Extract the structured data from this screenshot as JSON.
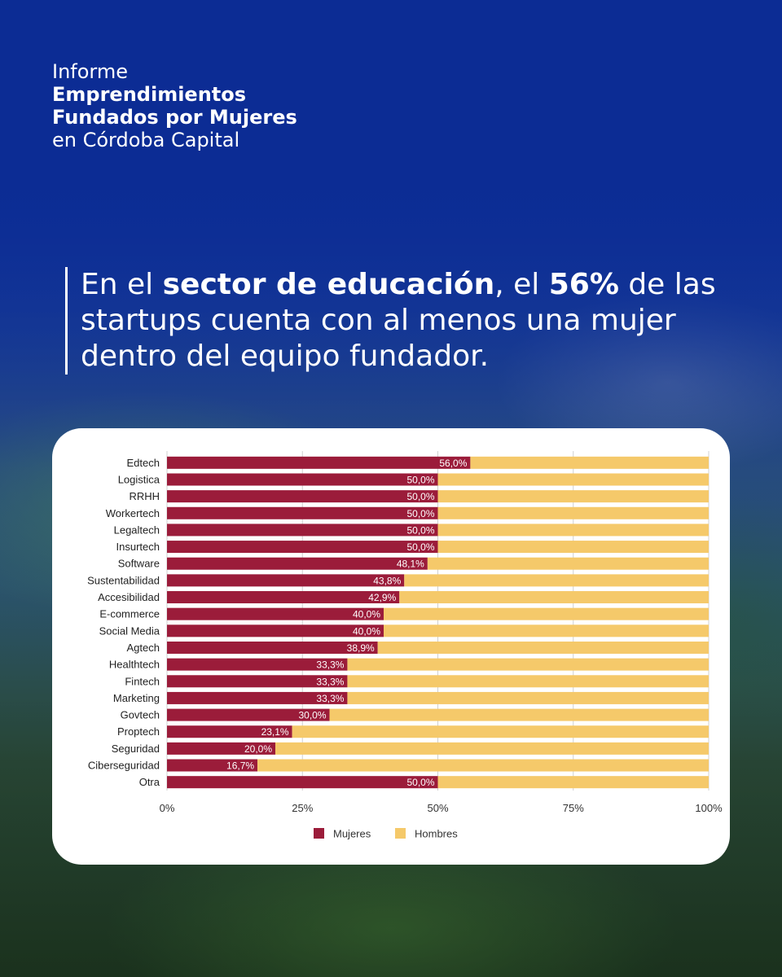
{
  "report": {
    "line1": "Informe",
    "line2": "Emprendimientos",
    "line3": "Fundados por Mujeres",
    "line4": "en Córdoba Capital"
  },
  "headline": {
    "p1": "En el ",
    "b1": "sector de educación",
    "p2": ", el ",
    "b2": "56%",
    "p3": " de las startups cuenta con al menos una mujer dentro del equipo fundador."
  },
  "colors": {
    "mujeres": "#9b1c3a",
    "hombres": "#f5c96a",
    "grid": "#d0d0d0"
  },
  "chart_data": {
    "type": "bar",
    "orientation": "horizontal",
    "stacked": true,
    "percent_stacked": true,
    "categories": [
      "Edtech",
      "Logistica",
      "RRHH",
      "Workertech",
      "Legaltech",
      "Insurtech",
      "Software",
      "Sustentabilidad",
      "Accesibilidad",
      "E-commerce",
      "Social Media",
      "Agtech",
      "Healthtech",
      "Fintech",
      "Marketing",
      "Govtech",
      "Proptech",
      "Seguridad",
      "Ciberseguridad",
      "Otra"
    ],
    "series": [
      {
        "name": "Mujeres",
        "values": [
          56.0,
          50.0,
          50.0,
          50.0,
          50.0,
          50.0,
          48.1,
          43.8,
          42.9,
          40.0,
          40.0,
          38.9,
          33.3,
          33.3,
          33.3,
          30.0,
          23.1,
          20.0,
          16.7,
          50.0
        ]
      },
      {
        "name": "Hombres",
        "values": [
          44.0,
          50.0,
          50.0,
          50.0,
          50.0,
          50.0,
          51.9,
          56.2,
          57.1,
          60.0,
          60.0,
          61.1,
          66.7,
          66.7,
          66.7,
          70.0,
          76.9,
          80.0,
          83.3,
          50.0
        ]
      }
    ],
    "data_labels": [
      "56,0%",
      "50,0%",
      "50,0%",
      "50,0%",
      "50,0%",
      "50,0%",
      "48,1%",
      "43,8%",
      "42,9%",
      "40,0%",
      "40,0%",
      "38,9%",
      "33,3%",
      "33,3%",
      "33,3%",
      "30,0%",
      "23,1%",
      "20,0%",
      "16,7%",
      "50,0%"
    ],
    "x_ticks": [
      "0%",
      "25%",
      "50%",
      "75%",
      "100%"
    ],
    "xlim": [
      0,
      100
    ],
    "grid": true,
    "legend": {
      "position": "bottom",
      "entries": [
        "Mujeres",
        "Hombres"
      ]
    }
  }
}
